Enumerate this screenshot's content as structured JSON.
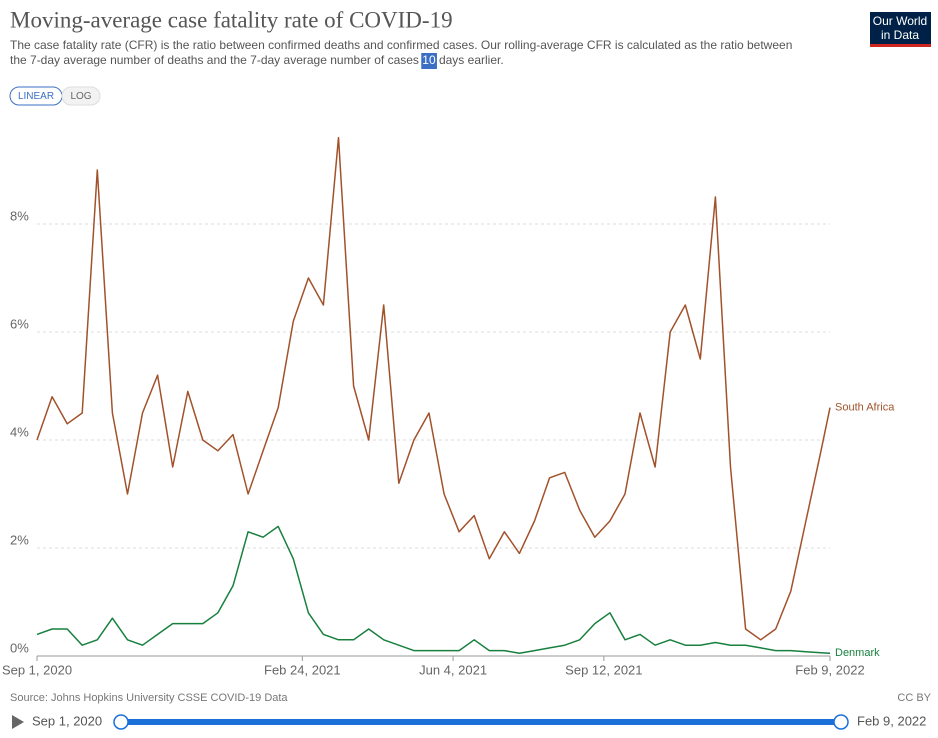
{
  "header": {
    "logo": [
      "Our World",
      "in Data"
    ]
  },
  "controls": {
    "buttons": [
      "LINEAR",
      "LOG"
    ]
  },
  "footer": {
    "source": "Source: Johns Hopkins University CSSE COVID-19 Data",
    "license": "CC BY"
  },
  "timeline": {
    "start": "Sep 1, 2020",
    "end": "Feb 9, 2022"
  },
  "chart_data": {
    "type": "line",
    "title": "Moving-average case fatality rate of COVID-19",
    "subtitle": [
      "The case fatality rate (CFR) is the ratio between confirmed deaths and confirmed cases. Our rolling-average CFR is calculated as the ratio between",
      "the 7-day average number of deaths and the 7-day average number of cases ",
      "10",
      " days earlier."
    ],
    "x": [
      "2020-09-01",
      "2020-09-11",
      "2020-09-21",
      "2020-10-01",
      "2020-10-11",
      "2020-10-21",
      "2020-10-31",
      "2020-11-10",
      "2020-11-20",
      "2020-11-30",
      "2020-12-10",
      "2020-12-20",
      "2020-12-30",
      "2021-01-09",
      "2021-01-19",
      "2021-01-29",
      "2021-02-08",
      "2021-02-18",
      "2021-02-28",
      "2021-03-10",
      "2021-03-20",
      "2021-03-30",
      "2021-04-09",
      "2021-04-19",
      "2021-04-29",
      "2021-05-09",
      "2021-05-19",
      "2021-05-29",
      "2021-06-08",
      "2021-06-18",
      "2021-06-28",
      "2021-07-08",
      "2021-07-18",
      "2021-07-28",
      "2021-08-07",
      "2021-08-17",
      "2021-08-27",
      "2021-09-06",
      "2021-09-16",
      "2021-09-26",
      "2021-10-06",
      "2021-10-16",
      "2021-10-26",
      "2021-11-05",
      "2021-11-15",
      "2021-11-25",
      "2021-12-05",
      "2021-12-15",
      "2021-12-25",
      "2022-01-04",
      "2022-01-14",
      "2022-01-24",
      "2022-02-03",
      "2022-02-09"
    ],
    "series": [
      {
        "name": "South Africa",
        "color": "#a2522b",
        "values": [
          4.0,
          4.8,
          4.3,
          4.5,
          9.0,
          4.5,
          3.0,
          4.5,
          5.2,
          3.5,
          4.9,
          4.0,
          3.8,
          4.1,
          3.0,
          3.8,
          4.6,
          6.2,
          7.0,
          6.5,
          9.6,
          5.0,
          4.0,
          6.5,
          3.2,
          4.0,
          4.5,
          3.0,
          2.3,
          2.6,
          1.8,
          2.3,
          1.9,
          2.5,
          3.3,
          3.4,
          2.7,
          2.2,
          2.5,
          3.0,
          4.5,
          3.5,
          6.0,
          6.5,
          5.5,
          8.5,
          3.5,
          0.5,
          0.3,
          0.5,
          1.2,
          2.5,
          3.8,
          4.6
        ]
      },
      {
        "name": "Denmark",
        "color": "#18803f",
        "values": [
          0.4,
          0.5,
          0.5,
          0.2,
          0.3,
          0.7,
          0.3,
          0.2,
          0.4,
          0.6,
          0.6,
          0.6,
          0.8,
          1.3,
          2.3,
          2.2,
          2.4,
          1.8,
          0.8,
          0.4,
          0.3,
          0.3,
          0.5,
          0.3,
          0.2,
          0.1,
          0.1,
          0.1,
          0.1,
          0.3,
          0.1,
          0.1,
          0.05,
          0.1,
          0.15,
          0.2,
          0.3,
          0.6,
          0.8,
          0.3,
          0.4,
          0.2,
          0.3,
          0.2,
          0.2,
          0.25,
          0.2,
          0.2,
          0.15,
          0.1,
          0.1,
          0.08,
          0.06,
          0.05
        ]
      }
    ],
    "xlim": [
      "2020-09-01",
      "2022-02-09"
    ],
    "xticks": [
      {
        "value": "2020-09-01",
        "label": "Sep 1, 2020"
      },
      {
        "value": "2021-02-24",
        "label": "Feb 24, 2021"
      },
      {
        "value": "2021-06-04",
        "label": "Jun 4, 2021"
      },
      {
        "value": "2021-09-12",
        "label": "Sep 12, 2021"
      },
      {
        "value": "2022-02-09",
        "label": "Feb 9, 2022"
      }
    ],
    "ylim": [
      0,
      10
    ],
    "yticks": [
      {
        "value": 0,
        "label": "0%"
      },
      {
        "value": 2,
        "label": "2%"
      },
      {
        "value": 4,
        "label": "4%"
      },
      {
        "value": 6,
        "label": "6%"
      },
      {
        "value": 8,
        "label": "8%"
      }
    ],
    "grid": true
  }
}
